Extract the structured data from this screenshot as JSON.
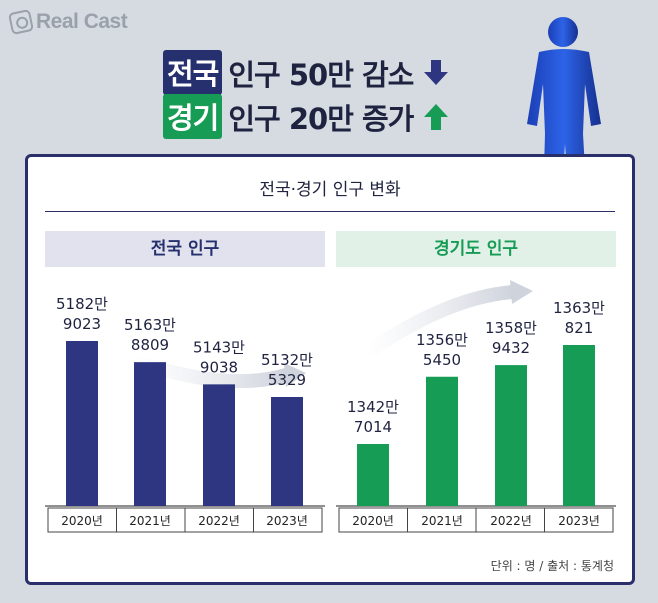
{
  "brand": {
    "name": "Real Cast"
  },
  "headline": {
    "line1": {
      "tag": "전국",
      "text": "인구 50만 감소"
    },
    "line2": {
      "tag": "경기",
      "text": "인구 20만 증가"
    }
  },
  "colors": {
    "navy": "#2f3681",
    "green": "#169c55",
    "frame": "#2a2f6a"
  },
  "chart_data": [
    {
      "type": "bar",
      "title": "전국 인구",
      "categories": [
        "2020년",
        "2021년",
        "2022년",
        "2023년"
      ],
      "values": [
        51829023,
        51638809,
        51439038,
        51325329
      ],
      "labels": [
        [
          "5182만",
          "9023"
        ],
        [
          "5163만",
          "8809"
        ],
        [
          "5143만",
          "9038"
        ],
        [
          "5132만",
          "5329"
        ]
      ],
      "color": "#2f3681"
    },
    {
      "type": "bar",
      "title": "경기도 인구",
      "categories": [
        "2020년",
        "2021년",
        "2022년",
        "2023년"
      ],
      "values": [
        13427014,
        13565450,
        13589432,
        13630821
      ],
      "labels": [
        [
          "1342만",
          "7014"
        ],
        [
          "1356만",
          "5450"
        ],
        [
          "1358만",
          "9432"
        ],
        [
          "1363만",
          "821"
        ]
      ],
      "color": "#169c55"
    }
  ],
  "card": {
    "title": "전국·경기 인구 변화",
    "footnote": "단위 : 명 / 출처 : 통계청"
  }
}
